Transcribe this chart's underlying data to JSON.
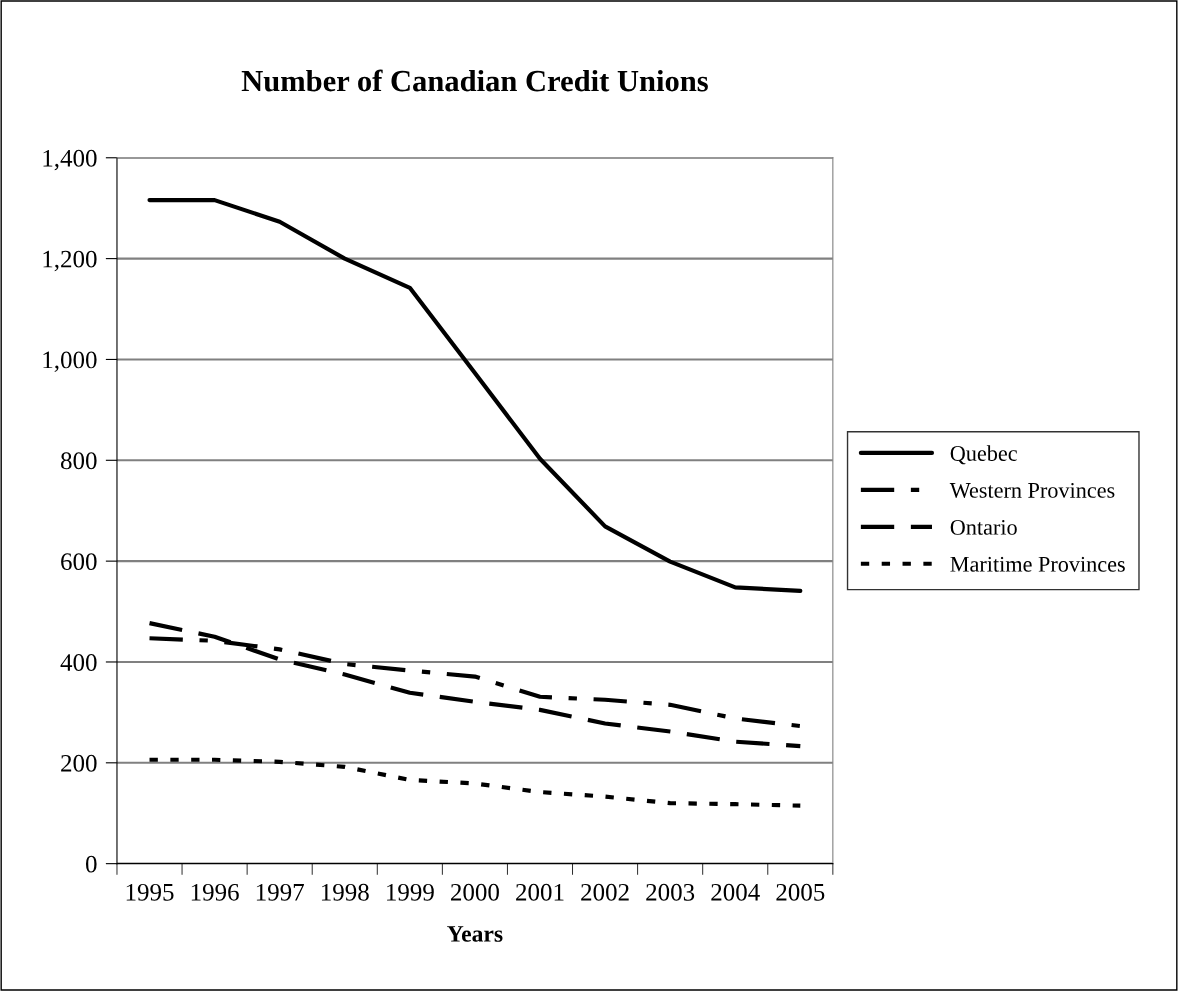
{
  "chart_data": {
    "type": "line",
    "title": "Number of Canadian Credit Unions",
    "xlabel": "Years",
    "categories": [
      "1995",
      "1996",
      "1997",
      "1998",
      "1999",
      "2000",
      "2001",
      "2002",
      "2003",
      "2004",
      "2005"
    ],
    "series": [
      {
        "name": "Quebec",
        "color": "#000000",
        "line_style": "solid",
        "values": [
          1316,
          1316,
          1273,
          1200,
          1142,
          973,
          803,
          669,
          599,
          548,
          541
        ]
      },
      {
        "name": "Western Provinces",
        "color": "#000000",
        "line_style": "dashdot",
        "values": [
          447,
          442,
          425,
          396,
          383,
          371,
          331,
          325,
          315,
          288,
          273
        ]
      },
      {
        "name": "Ontario",
        "color": "#000000",
        "line_style": "dashed",
        "values": [
          477,
          450,
          405,
          375,
          339,
          321,
          305,
          278,
          262,
          242,
          233
        ]
      },
      {
        "name": "Maritime Provinces",
        "color": "#000000",
        "line_style": "dotted",
        "values": [
          206,
          206,
          202,
          192,
          166,
          159,
          142,
          133,
          120,
          118,
          115
        ]
      }
    ],
    "ylim": [
      0,
      1400
    ],
    "yticks": [
      0,
      200,
      400,
      600,
      800,
      {
        "value": 1000,
        "label": "1,000"
      },
      {
        "value": 1200,
        "label": "1,200"
      },
      {
        "value": 1400,
        "label": "1,400"
      }
    ],
    "grid": "y",
    "legend": "right",
    "marker": "none"
  }
}
